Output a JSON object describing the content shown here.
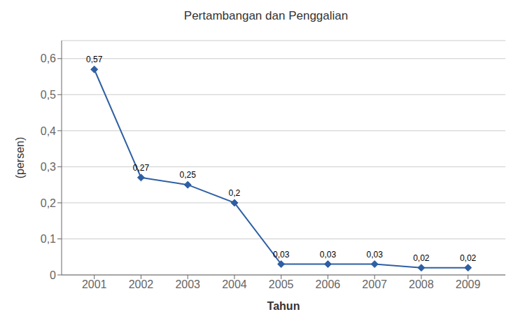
{
  "chart_data": {
    "type": "line",
    "title": "Pertambangan dan Penggalian",
    "xlabel": "Tahun",
    "ylabel": "(persen)",
    "x": [
      2001,
      2002,
      2003,
      2004,
      2005,
      2006,
      2007,
      2008,
      2009
    ],
    "values": [
      0.57,
      0.27,
      0.25,
      0.2,
      0.03,
      0.03,
      0.03,
      0.02,
      0.02
    ],
    "value_labels": [
      "0,57",
      "0,27",
      "0,25",
      "0,2",
      "0,03",
      "0,03",
      "0,03",
      "0,02",
      "0,02"
    ],
    "data_labels": true,
    "color": "#2E5FA3",
    "marker": "diamond",
    "xlim": [
      2000.3,
      2009.8
    ],
    "xticks": [
      2001,
      2002,
      2003,
      2004,
      2005,
      2006,
      2007,
      2008,
      2009
    ],
    "ylim": [
      0,
      0.65
    ],
    "yticks": [
      0,
      {
        "value": 0.1,
        "label": "0,1"
      },
      {
        "value": 0.2,
        "label": "0,2"
      },
      {
        "value": 0.3,
        "label": "0,3"
      },
      {
        "value": 0.4,
        "label": "0,4"
      },
      {
        "value": 0.5,
        "label": "0,5"
      },
      {
        "value": 0.6,
        "label": "0,6"
      }
    ],
    "grid": true
  }
}
